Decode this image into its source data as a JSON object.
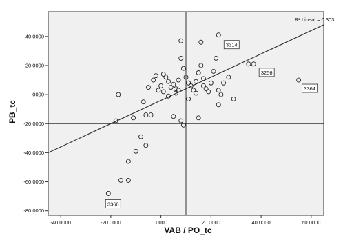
{
  "chart_data": {
    "type": "scatter",
    "title": "",
    "xlabel": "VAB / PO_tc",
    "ylabel": "PB_tc",
    "xlim": [
      -45,
      65
    ],
    "ylim": [
      -83,
      57
    ],
    "x_ticks": [
      -40,
      -20,
      0,
      20,
      40,
      60
    ],
    "x_tick_labels": [
      "-40.0000",
      "-20.0000",
      ".0000",
      "20.0000",
      "40.0000",
      "60.0000"
    ],
    "y_ticks": [
      -80,
      -60,
      -40,
      -20,
      0,
      20,
      40
    ],
    "y_tick_labels": [
      "-80.0000",
      "-60.0000",
      "-40.0000",
      "-20.0000",
      ".0000",
      "20.0000",
      "40.0000"
    ],
    "grid": false,
    "plot_background": "#f0f0f0",
    "reference_lines": {
      "x": 10,
      "y": -20
    },
    "fit_line": {
      "label": "R² Lineal = 0.303",
      "r2": 0.303,
      "x1": -45,
      "y1": -40,
      "x2": 65,
      "y2": 48
    },
    "points": [
      {
        "x": 23,
        "y": 41
      },
      {
        "x": 8,
        "y": 37
      },
      {
        "x": 16,
        "y": 36
      },
      {
        "x": 37,
        "y": 21
      },
      {
        "x": 35,
        "y": 21
      },
      {
        "x": 55,
        "y": 10
      },
      {
        "x": -21,
        "y": -68
      },
      {
        "x": -16,
        "y": -59
      },
      {
        "x": -13,
        "y": -59
      },
      {
        "x": -13,
        "y": -46
      },
      {
        "x": -10,
        "y": -39
      },
      {
        "x": -6,
        "y": -35
      },
      {
        "x": -8,
        "y": -29
      },
      {
        "x": -18,
        "y": -18
      },
      {
        "x": -11,
        "y": -16
      },
      {
        "x": -6,
        "y": -14
      },
      {
        "x": -4,
        "y": -14
      },
      {
        "x": -7,
        "y": -5
      },
      {
        "x": -17,
        "y": 0
      },
      {
        "x": -5,
        "y": 5
      },
      {
        "x": -3,
        "y": 10
      },
      {
        "x": -2,
        "y": 13
      },
      {
        "x": 0,
        "y": 6
      },
      {
        "x": 1,
        "y": 14
      },
      {
        "x": 2,
        "y": 12
      },
      {
        "x": 3,
        "y": 9
      },
      {
        "x": 4,
        "y": 5
      },
      {
        "x": 5,
        "y": 7
      },
      {
        "x": 6,
        "y": 4
      },
      {
        "x": 7,
        "y": 10
      },
      {
        "x": 8,
        "y": 25
      },
      {
        "x": 9,
        "y": 18
      },
      {
        "x": 10,
        "y": 12
      },
      {
        "x": 11,
        "y": 8
      },
      {
        "x": 12,
        "y": 6
      },
      {
        "x": 13,
        "y": 3
      },
      {
        "x": 14,
        "y": 9
      },
      {
        "x": 15,
        "y": 15
      },
      {
        "x": 16,
        "y": 20
      },
      {
        "x": 17,
        "y": 11
      },
      {
        "x": 18,
        "y": 4
      },
      {
        "x": 19,
        "y": 2
      },
      {
        "x": 20,
        "y": 8
      },
      {
        "x": 21,
        "y": 16
      },
      {
        "x": 22,
        "y": 25
      },
      {
        "x": 23,
        "y": 3
      },
      {
        "x": 24,
        "y": 0
      },
      {
        "x": 25,
        "y": 8
      },
      {
        "x": 27,
        "y": 12
      },
      {
        "x": 29,
        "y": -3
      },
      {
        "x": 3,
        "y": -1
      },
      {
        "x": 5,
        "y": -15
      },
      {
        "x": 8,
        "y": -18
      },
      {
        "x": 9,
        "y": -21
      },
      {
        "x": 15,
        "y": -16
      },
      {
        "x": 23,
        "y": -7
      },
      {
        "x": 1,
        "y": 2
      },
      {
        "x": 6,
        "y": 1
      },
      {
        "x": 11,
        "y": -3
      },
      {
        "x": 14,
        "y": 1
      },
      {
        "x": -1,
        "y": 3
      },
      {
        "x": 7,
        "y": 3
      },
      {
        "x": 17,
        "y": 6
      }
    ],
    "case_labels": [
      {
        "text": "3314",
        "x": 23,
        "y": 41
      },
      {
        "text": "3256",
        "x": 37,
        "y": 21
      },
      {
        "text": "3364",
        "x": 55,
        "y": 10
      },
      {
        "text": "3366",
        "x": -21,
        "y": -68
      }
    ]
  }
}
